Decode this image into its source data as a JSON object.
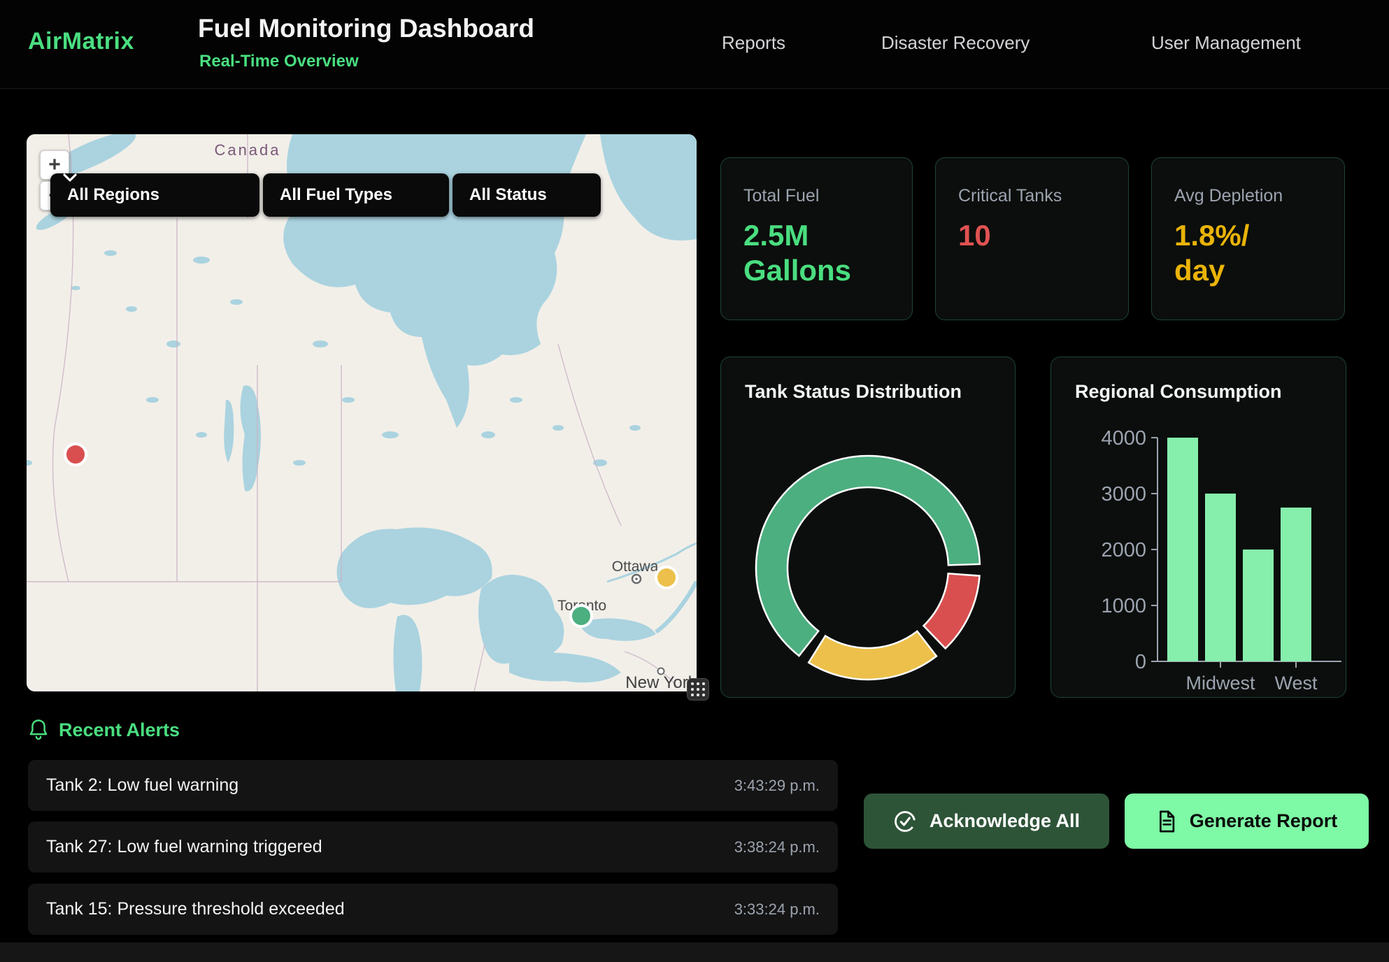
{
  "header": {
    "logo": "AirMatrix",
    "title": "Fuel Monitoring Dashboard",
    "subtitle": "Real-Time Overview",
    "nav": [
      {
        "label": "Reports"
      },
      {
        "label": "Disaster Recovery"
      },
      {
        "label": "User Management"
      }
    ]
  },
  "map": {
    "controls": {
      "zoom_in": "+",
      "zoom_out": "−"
    },
    "filters": [
      {
        "value": "All Regions"
      },
      {
        "value": "All Fuel Types"
      },
      {
        "value": "All Status"
      }
    ],
    "labels": [
      {
        "text": "Canada",
        "color": "#7a5878"
      },
      {
        "text": "Ottawa"
      },
      {
        "text": "Toronto"
      },
      {
        "text": "New York"
      }
    ],
    "markers": [
      {
        "color": "#d94f4f"
      },
      {
        "color": "#ecc04a"
      },
      {
        "color": "#4caf80"
      }
    ]
  },
  "stats": [
    {
      "label": "Total Fuel",
      "value": "2.5M\nGallons",
      "color": "#4ade80"
    },
    {
      "label": "Critical Tanks",
      "value": "10",
      "color": "#e05252"
    },
    {
      "label": "Avg Depletion",
      "value": "1.8%/\nday",
      "color": "#eab308"
    }
  ],
  "chart_data": [
    {
      "type": "donut",
      "title": "Tank Status Distribution",
      "start_angle_deg": 218,
      "gap_deg": 6,
      "segments": [
        {
          "color": "#4caf80",
          "percent": 67.3
        },
        {
          "color": "#d94f4f",
          "percent": 12.3
        },
        {
          "color": "#ecc04a",
          "percent": 20.4
        }
      ]
    },
    {
      "type": "bar",
      "title": "Regional Consumption",
      "categories": [
        "",
        "Midwest",
        "",
        "West"
      ],
      "values": [
        4000,
        3000,
        2000,
        2750
      ],
      "yticks": [
        0,
        1000,
        2000,
        3000,
        4000
      ],
      "ylim": [
        0,
        4000
      ],
      "bar_color": "#86efac",
      "axis_color": "#9ca3af",
      "grid": false,
      "legend": false
    }
  ],
  "alerts": {
    "title": "Recent Alerts",
    "items": [
      {
        "message": "Tank 2: Low fuel warning",
        "time": "3:43:29 p.m."
      },
      {
        "message": "Tank 27: Low fuel warning triggered",
        "time": "3:38:24 p.m."
      },
      {
        "message": "Tank 15: Pressure threshold exceeded",
        "time": "3:33:24 p.m."
      }
    ]
  },
  "actions": {
    "acknowledge": "Acknowledge All",
    "generate": "Generate Report"
  }
}
